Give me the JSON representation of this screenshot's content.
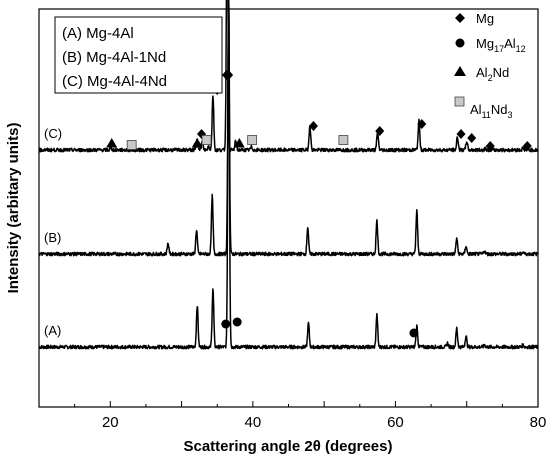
{
  "chart_data": {
    "type": "line",
    "xlabel": "Scattering angle 2θ (degrees)",
    "ylabel": "Intensity (arbitary units)",
    "xlim": [
      10,
      80
    ],
    "xticks": [
      "20",
      "40",
      "60",
      "80"
    ],
    "xtick_values": [
      20,
      40,
      60,
      80
    ],
    "grid": false,
    "legend_box": {
      "placement": "top-left",
      "entries": [
        "(A) Mg-4Al",
        "(B) Mg-4Al-1Nd",
        "(C) Mg-4Al-4Nd"
      ]
    },
    "phase_legend": {
      "placement": "top-right",
      "entries": [
        {
          "symbol": "diamond",
          "name": "Mg",
          "sub": []
        },
        {
          "symbol": "circle",
          "name": "Mg17Al12",
          "parts": [
            "Mg",
            "17",
            "Al",
            "12"
          ]
        },
        {
          "symbol": "triangle",
          "name": "Al2Nd",
          "parts": [
            "Al",
            "2",
            "Nd",
            ""
          ]
        },
        {
          "symbol": "square",
          "name": "Al11Nd3",
          "parts": [
            "Al",
            "11",
            "Nd",
            "3"
          ]
        }
      ]
    },
    "series": [
      {
        "name": "(A)",
        "baseline": 0,
        "peaks": [
          [
            32.2,
            0.42
          ],
          [
            34.4,
            0.58
          ],
          [
            36.6,
            3.6
          ],
          [
            47.8,
            0.24
          ],
          [
            57.4,
            0.32
          ],
          [
            63.0,
            0.21
          ],
          [
            67.3,
            0.04
          ],
          [
            68.6,
            0.19
          ],
          [
            69.9,
            0.11
          ],
          [
            72.5,
            0.02
          ],
          [
            77.9,
            0.02
          ]
        ],
        "markers": [
          {
            "symbol": "circle",
            "x": 36.2,
            "y": 0.23
          },
          {
            "symbol": "circle",
            "x": 37.8,
            "y": 0.25
          },
          {
            "symbol": "circle",
            "x": 62.6,
            "y": 0.14
          }
        ]
      },
      {
        "name": "(B)",
        "baseline": 1,
        "peaks": [
          [
            28.1,
            0.11
          ],
          [
            32.1,
            0.24
          ],
          [
            34.3,
            0.58
          ],
          [
            36.6,
            2.6
          ],
          [
            47.7,
            0.27
          ],
          [
            57.4,
            0.33
          ],
          [
            63.0,
            0.43
          ],
          [
            68.6,
            0.16
          ],
          [
            69.9,
            0.08
          ],
          [
            72.5,
            0.03
          ],
          [
            77.9,
            0.02
          ]
        ],
        "markers": []
      },
      {
        "name": "(C)",
        "baseline": 2,
        "peaks": [
          [
            20.1,
            0.02
          ],
          [
            32.2,
            0.12
          ],
          [
            32.9,
            0.08
          ],
          [
            33.8,
            0.04
          ],
          [
            34.4,
            0.55
          ],
          [
            36.4,
            2.5
          ],
          [
            37.6,
            0.09
          ],
          [
            39.8,
            0.03
          ],
          [
            48.0,
            0.25
          ],
          [
            57.5,
            0.18
          ],
          [
            63.3,
            0.29
          ],
          [
            68.7,
            0.13
          ],
          [
            70.0,
            0.09
          ],
          [
            72.6,
            0.02
          ],
          [
            77.9,
            0.02
          ]
        ],
        "markers": [
          {
            "symbol": "triangle",
            "x": 20.2,
            "y": 0.07
          },
          {
            "symbol": "square",
            "x": 23.0,
            "y": 0.05
          },
          {
            "symbol": "triangle",
            "x": 32.2,
            "y": 0.07
          },
          {
            "symbol": "diamond",
            "x": 32.8,
            "y": 0.16
          },
          {
            "symbol": "square",
            "x": 33.5,
            "y": 0.1
          },
          {
            "symbol": "diamond",
            "x": 35.0,
            "y": 0.6
          },
          {
            "symbol": "diamond",
            "x": 36.3,
            "y": 0.75
          },
          {
            "symbol": "diamond",
            "x": 36.6,
            "y": 0.75
          },
          {
            "symbol": "triangle",
            "x": 38.1,
            "y": 0.07
          },
          {
            "symbol": "square",
            "x": 39.9,
            "y": 0.1
          },
          {
            "symbol": "diamond",
            "x": 48.5,
            "y": 0.24
          },
          {
            "symbol": "square",
            "x": 52.7,
            "y": 0.1
          },
          {
            "symbol": "diamond",
            "x": 57.8,
            "y": 0.19
          },
          {
            "symbol": "diamond",
            "x": 63.7,
            "y": 0.26
          },
          {
            "symbol": "diamond",
            "x": 69.2,
            "y": 0.16
          },
          {
            "symbol": "diamond",
            "x": 70.7,
            "y": 0.12
          },
          {
            "symbol": "diamond",
            "x": 73.3,
            "y": 0.04
          },
          {
            "symbol": "diamond",
            "x": 78.5,
            "y": 0.04
          }
        ]
      }
    ]
  }
}
